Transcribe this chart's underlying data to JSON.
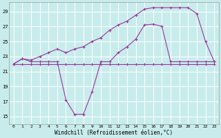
{
  "xlabel": "Windchill (Refroidissement éolien,°C)",
  "bg_color": "#c8ecec",
  "grid_color": "#ffffff",
  "line_color": "#993399",
  "xlim_min": -0.5,
  "xlim_max": 23.5,
  "ylim_min": 14.0,
  "ylim_max": 30.2,
  "xticks": [
    0,
    1,
    2,
    3,
    4,
    5,
    6,
    7,
    8,
    9,
    10,
    11,
    12,
    13,
    14,
    15,
    16,
    17,
    18,
    19,
    20,
    21,
    22,
    23
  ],
  "yticks": [
    15,
    17,
    19,
    21,
    23,
    25,
    27,
    29
  ],
  "line1_x": [
    0,
    1,
    2,
    3,
    4,
    5,
    6,
    7,
    8,
    9,
    10,
    11,
    12,
    13,
    14,
    15,
    16,
    17,
    18,
    19,
    20,
    21,
    22,
    23
  ],
  "line1_y": [
    22.0,
    22.0,
    22.0,
    22.0,
    22.0,
    22.0,
    22.0,
    22.0,
    22.0,
    22.0,
    22.0,
    22.0,
    22.0,
    22.0,
    22.0,
    22.0,
    22.0,
    22.0,
    22.0,
    22.0,
    22.0,
    22.0,
    22.0,
    22.0
  ],
  "line2_x": [
    0,
    1,
    2,
    3,
    4,
    5,
    6,
    7,
    8,
    9,
    10,
    11,
    12,
    13,
    14,
    15,
    16,
    17,
    18,
    19,
    20,
    21,
    22,
    23
  ],
  "line2_y": [
    22.0,
    22.7,
    22.3,
    22.3,
    22.3,
    22.3,
    17.2,
    15.3,
    15.3,
    18.3,
    22.3,
    22.3,
    23.5,
    24.3,
    25.3,
    27.2,
    27.3,
    27.0,
    22.3,
    22.3,
    22.3,
    22.3,
    22.3,
    22.3
  ],
  "line3_x": [
    0,
    1,
    2,
    3,
    4,
    5,
    6,
    7,
    8,
    9,
    10,
    11,
    12,
    13,
    14,
    15,
    16,
    17,
    18,
    19,
    20,
    21,
    22,
    23
  ],
  "line3_y": [
    22.0,
    22.7,
    22.5,
    23.0,
    23.5,
    24.0,
    23.5,
    24.0,
    24.3,
    25.0,
    25.5,
    26.5,
    27.2,
    27.7,
    28.5,
    29.3,
    29.5,
    29.5,
    29.5,
    29.5,
    29.5,
    28.7,
    25.0,
    22.3
  ]
}
